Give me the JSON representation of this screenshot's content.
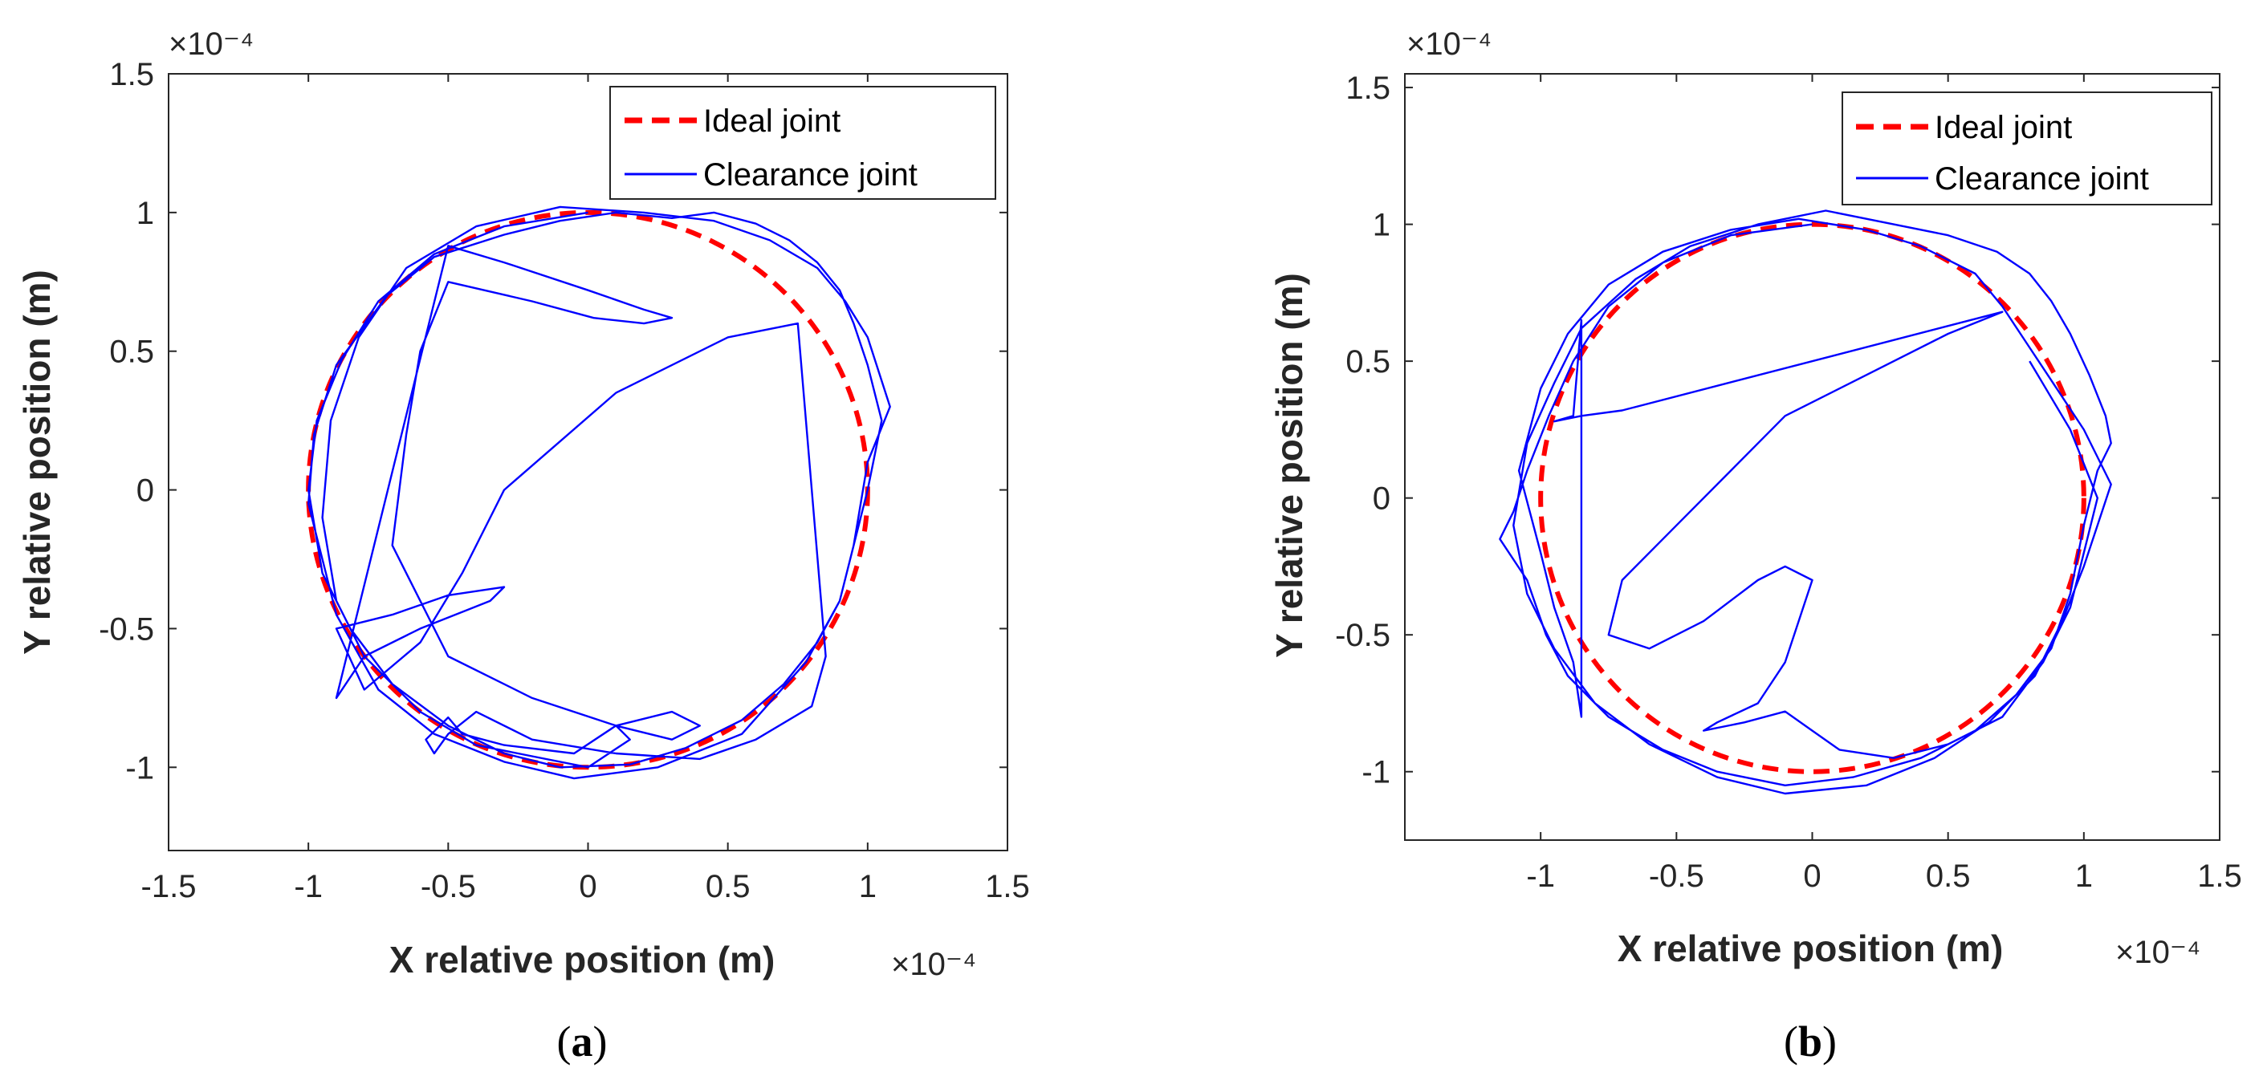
{
  "chart_data": [
    {
      "type": "line",
      "panel_label": "a",
      "xlabel": "X relative position (m)",
      "ylabel": "Y relative position (m)",
      "x_exponent_label": "×10⁻⁴",
      "y_exponent_label": "×10⁻⁴",
      "xlim": [
        -1.5,
        1.5
      ],
      "ylim": [
        -1.3,
        1.5
      ],
      "xticks": [
        -1.5,
        -1,
        -0.5,
        0,
        0.5,
        1,
        1.5
      ],
      "xtick_labels": [
        "-1.5",
        "-1",
        "-0.5",
        "0",
        "0.5",
        "1",
        "1.5"
      ],
      "yticks": [
        -1,
        -0.5,
        0,
        0.5,
        1,
        1.5
      ],
      "ytick_labels": [
        "-1",
        "-0.5",
        "0",
        "0.5",
        "1",
        "1.5"
      ],
      "legend": [
        "Ideal joint",
        "Clearance joint"
      ],
      "legend_position": "top-right",
      "series": [
        {
          "name": "Ideal joint",
          "shape": "circle",
          "center": [
            0,
            0
          ],
          "radius": 1.0,
          "color": "#ff0000",
          "style": "dashed"
        },
        {
          "name": "Clearance joint",
          "color": "#0000ff",
          "style": "solid",
          "x": [
            0.0,
            -0.3,
            -0.55,
            -0.75,
            -0.88,
            -0.97,
            -1.0,
            -0.95,
            -0.85,
            -0.7,
            -0.5,
            -0.3,
            -0.1,
            0.15,
            0.35,
            0.55,
            0.7,
            0.82,
            0.9,
            0.95,
            1.0,
            1.05,
            1.0,
            0.95,
            0.9,
            0.82,
            0.72,
            0.6,
            0.45,
            0.3,
            0.1,
            -0.1,
            -0.3,
            -0.55,
            -0.72,
            -0.9,
            -0.98,
            -1.0,
            -0.9,
            -0.75,
            -0.55,
            -0.3,
            -0.05,
            0.25,
            0.55,
            0.78,
            0.9,
            0.95,
            1.0,
            1.08,
            1.0,
            0.92,
            0.82,
            0.65,
            0.45,
            0.2,
            -0.1,
            -0.4,
            -0.65,
            -0.82,
            -0.92,
            -0.95,
            -0.9,
            -0.8,
            -0.6,
            -0.4,
            -0.2,
            0.0,
            0.15,
            0.1,
            -0.05,
            -0.3,
            -0.45,
            -0.5,
            -0.58,
            -0.55,
            -0.5,
            -0.4,
            -0.2,
            0.1,
            0.4,
            0.6,
            0.8,
            0.85,
            0.75,
            0.5,
            0.1,
            -0.3,
            -0.45,
            -0.6,
            -0.8,
            -0.9,
            -0.7,
            -0.5,
            -0.3,
            -0.35,
            -0.6,
            -0.8,
            -0.9,
            -0.5,
            -0.3,
            0.0,
            0.2,
            0.3,
            0.2,
            0.02,
            -0.2,
            -0.5,
            -0.6,
            -0.65,
            -0.7,
            -0.5,
            -0.2,
            0.1,
            0.3,
            0.4,
            0.3,
            0.1
          ],
          "y": [
            1.0,
            0.95,
            0.85,
            0.68,
            0.47,
            0.25,
            0.0,
            -0.3,
            -0.5,
            -0.7,
            -0.85,
            -0.95,
            -1.0,
            -0.99,
            -0.93,
            -0.83,
            -0.7,
            -0.55,
            -0.4,
            -0.2,
            0.0,
            0.25,
            0.45,
            0.6,
            0.72,
            0.82,
            0.9,
            0.96,
            1.0,
            0.98,
            1.0,
            0.97,
            0.92,
            0.84,
            0.7,
            0.45,
            0.2,
            -0.05,
            -0.45,
            -0.72,
            -0.88,
            -0.98,
            -1.04,
            -1.0,
            -0.88,
            -0.62,
            -0.4,
            -0.2,
            0.1,
            0.3,
            0.55,
            0.68,
            0.8,
            0.9,
            0.97,
            1.0,
            1.02,
            0.95,
            0.8,
            0.55,
            0.25,
            -0.1,
            -0.4,
            -0.6,
            -0.8,
            -0.92,
            -0.96,
            -1.0,
            -0.9,
            -0.85,
            -0.95,
            -0.92,
            -0.88,
            -0.82,
            -0.9,
            -0.95,
            -0.88,
            -0.8,
            -0.9,
            -0.95,
            -0.97,
            -0.9,
            -0.78,
            -0.6,
            0.6,
            0.55,
            0.35,
            0.0,
            -0.3,
            -0.55,
            -0.72,
            -0.5,
            -0.45,
            -0.38,
            -0.35,
            -0.4,
            -0.5,
            -0.6,
            -0.75,
            0.88,
            0.82,
            0.72,
            0.65,
            0.62,
            0.6,
            0.62,
            0.68,
            0.75,
            0.5,
            0.2,
            -0.2,
            -0.6,
            -0.75,
            -0.85,
            -0.9,
            -0.85,
            -0.8,
            -0.85
          ]
        }
      ]
    },
    {
      "type": "line",
      "panel_label": "b",
      "xlabel": "X relative position (m)",
      "ylabel": "Y relative position (m)",
      "x_exponent_label": "×10⁻⁴",
      "y_exponent_label": "×10⁻⁴",
      "xlim": [
        -1.5,
        1.5
      ],
      "ylim": [
        -1.25,
        1.55
      ],
      "xticks": [
        -1,
        -0.5,
        0,
        0.5,
        1,
        1.5
      ],
      "xtick_labels": [
        "-1",
        "-0.5",
        "0",
        "0.5",
        "1",
        "1.5"
      ],
      "yticks": [
        -1,
        -0.5,
        0,
        0.5,
        1,
        1.5
      ],
      "ytick_labels": [
        "-1",
        "-0.5",
        "0",
        "0.5",
        "1",
        "1.5"
      ],
      "legend": [
        "Ideal joint",
        "Clearance joint"
      ],
      "legend_position": "top-right",
      "series": [
        {
          "name": "Ideal joint",
          "shape": "circle",
          "center": [
            0,
            0
          ],
          "radius": 1.0,
          "color": "#ff0000",
          "style": "dashed"
        },
        {
          "name": "Clearance joint",
          "color": "#0000ff",
          "style": "solid",
          "x": [
            0.0,
            -0.3,
            -0.55,
            -0.75,
            -0.88,
            -0.97,
            -1.05,
            -1.1,
            -1.15,
            -1.05,
            -0.98,
            -0.9,
            -0.75,
            -0.55,
            -0.35,
            -0.1,
            0.15,
            0.4,
            0.6,
            0.75,
            0.88,
            0.95,
            1.0,
            1.05,
            1.1,
            1.08,
            1.02,
            0.95,
            0.88,
            0.8,
            0.68,
            0.5,
            0.3,
            0.05,
            -0.2,
            -0.45,
            -0.65,
            -0.85,
            -0.95,
            -1.05,
            -1.1,
            -1.05,
            -0.95,
            -0.8,
            -0.6,
            -0.35,
            -0.1,
            0.2,
            0.45,
            0.65,
            0.82,
            0.92,
            1.0,
            1.05,
            1.1,
            1.0,
            0.9,
            0.8,
            0.7,
            0.6,
            0.4,
            0.2,
            -0.05,
            -0.3,
            -0.55,
            -0.75,
            -0.9,
            -1.0,
            -1.08,
            -1.0,
            -0.95,
            -0.88,
            -0.85,
            -0.85,
            -0.88,
            -0.95,
            -0.85,
            -0.7,
            0.7,
            0.5,
            0.2,
            -0.1,
            -0.3,
            -0.5,
            -0.7,
            -0.75,
            -0.6,
            -0.4,
            -0.2,
            -0.1,
            0.0,
            -0.05,
            -0.1,
            -0.2,
            -0.35,
            -0.4,
            -0.25,
            -0.1,
            0.0,
            0.1,
            0.3,
            0.5,
            0.7,
            0.85,
            0.95,
            1.0,
            1.05,
            0.95,
            0.8
          ],
          "y": [
            1.0,
            0.96,
            0.86,
            0.7,
            0.5,
            0.3,
            0.1,
            -0.05,
            -0.15,
            -0.3,
            -0.5,
            -0.65,
            -0.8,
            -0.92,
            -1.0,
            -1.05,
            -1.02,
            -0.95,
            -0.85,
            -0.72,
            -0.55,
            -0.35,
            -0.1,
            0.1,
            0.2,
            0.3,
            0.45,
            0.6,
            0.72,
            0.82,
            0.9,
            0.96,
            1.0,
            1.05,
            1.0,
            0.92,
            0.8,
            0.62,
            0.42,
            0.2,
            -0.1,
            -0.35,
            -0.55,
            -0.75,
            -0.9,
            -1.02,
            -1.08,
            -1.05,
            -0.95,
            -0.82,
            -0.65,
            -0.45,
            -0.25,
            -0.1,
            0.05,
            0.25,
            0.4,
            0.55,
            0.7,
            0.82,
            0.92,
            0.98,
            1.02,
            0.98,
            0.9,
            0.78,
            0.6,
            0.4,
            0.1,
            -0.2,
            -0.4,
            -0.6,
            -0.8,
            0.65,
            0.3,
            0.28,
            0.3,
            0.32,
            0.68,
            0.6,
            0.45,
            0.3,
            0.1,
            -0.1,
            -0.3,
            -0.5,
            -0.55,
            -0.45,
            -0.3,
            -0.25,
            -0.3,
            -0.45,
            -0.6,
            -0.75,
            -0.82,
            -0.85,
            -0.82,
            -0.78,
            -0.85,
            -0.92,
            -0.95,
            -0.9,
            -0.8,
            -0.6,
            -0.4,
            -0.2,
            0.0,
            0.25,
            0.5
          ]
        }
      ]
    }
  ],
  "colors": {
    "ideal": "#ff0000",
    "clearance": "#0000ff",
    "axis": "#262626"
  }
}
